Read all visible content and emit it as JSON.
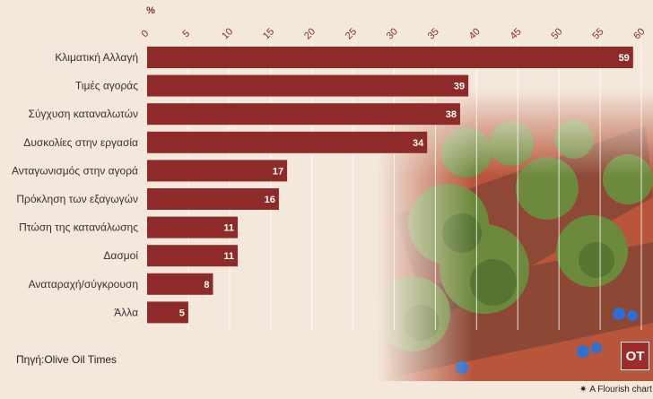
{
  "chart_data": {
    "type": "bar",
    "orientation": "horizontal",
    "unit": "%",
    "xlim": [
      0,
      60
    ],
    "ticks": [
      0,
      5,
      10,
      15,
      20,
      25,
      30,
      35,
      40,
      45,
      50,
      55,
      60
    ],
    "categories": [
      "Κλιματική Αλλαγή",
      "Τιμές αγοράς",
      "Σύγχυση καταναλωτών",
      "Δυσκολίες στην εργασία",
      "Ανταγωνισμός στην αγορά",
      "Πρόκληση των εξαγωγών",
      "Πτώση της κατανάλωσης",
      "Δασμοί",
      "Αναταραχή/σύγκρουση",
      "Άλλα"
    ],
    "values": [
      59,
      39,
      38,
      34,
      17,
      16,
      11,
      11,
      8,
      5
    ],
    "bar_color": "#8e2a2a",
    "grid": true
  },
  "source": "Πηγή:Olive Oil Times",
  "logo_text": "OT",
  "credit": "A Flourish chart",
  "credit_icon": "flourish-star-icon"
}
